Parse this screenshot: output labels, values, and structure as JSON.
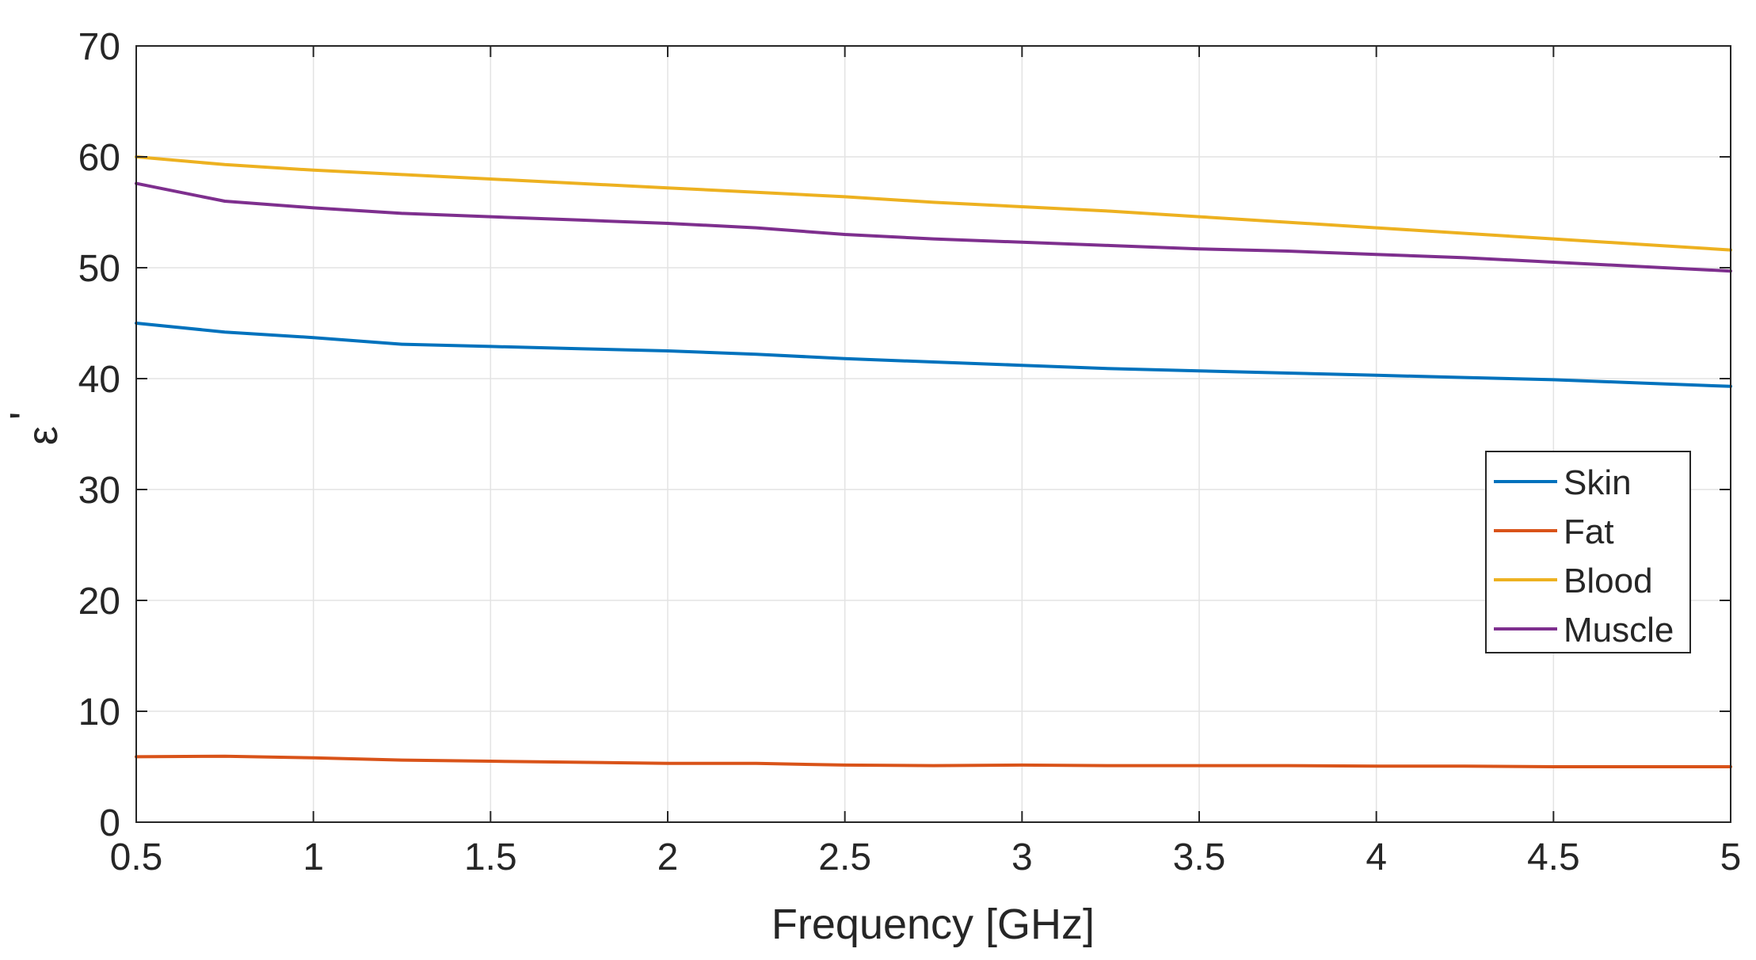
{
  "chart_data": {
    "type": "line",
    "title": "",
    "xlabel": "Frequency [GHz]",
    "ylabel_symbol": "ε",
    "ylabel_prime": "'",
    "xlim": [
      0.5,
      5
    ],
    "ylim": [
      0,
      70
    ],
    "xticks": [
      0.5,
      1,
      1.5,
      2,
      2.5,
      3,
      3.5,
      4,
      4.5,
      5
    ],
    "yticks": [
      0,
      10,
      20,
      30,
      40,
      50,
      60,
      70
    ],
    "grid": true,
    "legend_position": "right-center",
    "x": [
      0.5,
      0.75,
      1.0,
      1.25,
      1.5,
      1.75,
      2.0,
      2.25,
      2.5,
      2.75,
      3.0,
      3.25,
      3.5,
      3.75,
      4.0,
      4.25,
      4.5,
      4.75,
      5.0
    ],
    "series": [
      {
        "name": "Skin",
        "color": "#0072BD",
        "values": [
          45.0,
          44.2,
          43.7,
          43.1,
          42.9,
          42.7,
          42.5,
          42.2,
          41.8,
          41.5,
          41.2,
          40.9,
          40.7,
          40.5,
          40.3,
          40.1,
          39.9,
          39.6,
          39.3
        ]
      },
      {
        "name": "Fat",
        "color": "#D95319",
        "values": [
          5.9,
          5.95,
          5.8,
          5.6,
          5.5,
          5.4,
          5.3,
          5.3,
          5.15,
          5.1,
          5.15,
          5.1,
          5.1,
          5.1,
          5.05,
          5.05,
          5.0,
          5.0,
          5.0
        ]
      },
      {
        "name": "Blood",
        "color": "#EDB120",
        "values": [
          60.0,
          59.3,
          58.8,
          58.4,
          58.0,
          57.6,
          57.2,
          56.8,
          56.4,
          55.9,
          55.5,
          55.1,
          54.6,
          54.1,
          53.6,
          53.1,
          52.6,
          52.1,
          51.6
        ]
      },
      {
        "name": "Muscle",
        "color": "#7E2F8E",
        "values": [
          57.6,
          56.0,
          55.4,
          54.9,
          54.6,
          54.3,
          54.0,
          53.6,
          53.0,
          52.6,
          52.3,
          52.0,
          51.7,
          51.5,
          51.2,
          50.9,
          50.5,
          50.1,
          49.7
        ]
      }
    ]
  }
}
